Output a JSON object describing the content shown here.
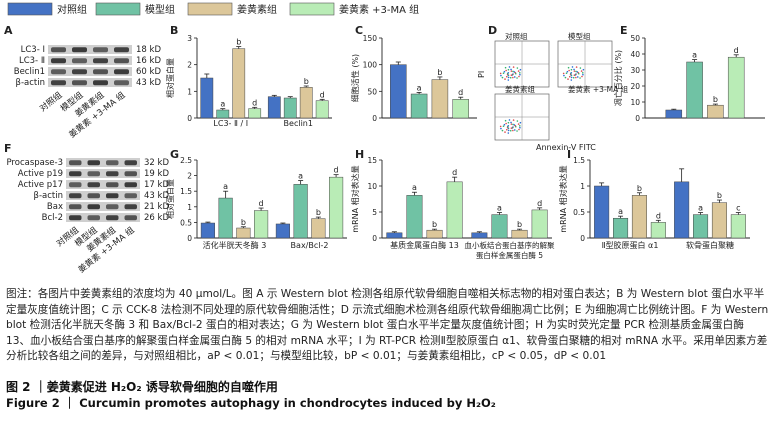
{
  "legend": [
    {
      "label": "对照组",
      "color": "#4472c4"
    },
    {
      "label": "模型组",
      "color": "#70c2a4"
    },
    {
      "label": "姜黄素组",
      "color": "#dcc79a"
    },
    {
      "label": "姜黄素 +3-MA 组",
      "color": "#b9ecb6"
    }
  ],
  "panels": {
    "A": {
      "letter": "A",
      "proteins": [
        "LC3- Ⅰ",
        "LC3- Ⅱ",
        "Beclin1",
        "β-actin"
      ],
      "kda": [
        "18 kD",
        "16 kD",
        "60 kD",
        "43 kD"
      ],
      "groups": [
        "对照组",
        "模型组",
        "姜黄素组",
        "姜黄素 +3-MA 组"
      ]
    },
    "D": {
      "letter": "D",
      "labels": [
        "对照组",
        "模型组",
        "姜黄素组",
        "姜黄素 +3-MA 组"
      ],
      "xlabel": "Annexin-V FITC",
      "ylabel": "PI"
    },
    "F": {
      "letter": "F",
      "proteins": [
        "Procaspase-3",
        "Active p19",
        "Active p17",
        "β-actin",
        "Bax",
        "Bcl-2"
      ],
      "kda": [
        "32 kD",
        "19 kD",
        "17 kD",
        "43 kD",
        "21 kD",
        "26 kD"
      ],
      "groups": [
        "对照组",
        "模型组",
        "姜黄素组",
        "姜黄素 +3-MA 组"
      ]
    }
  },
  "chart_data": [
    {
      "type": "bar",
      "panel": "B",
      "ylabel": "相对蛋白量",
      "yticks": [
        0,
        1,
        2,
        3
      ],
      "ylim": [
        0,
        3
      ],
      "categories": [
        "LC3- Ⅱ / Ⅰ",
        "Beclin1"
      ],
      "series": [
        {
          "name": "对照组",
          "values": [
            1.5,
            0.8
          ],
          "err": [
            0.15,
            0.05
          ]
        },
        {
          "name": "模型组",
          "values": [
            0.3,
            0.75
          ],
          "err": [
            0.05,
            0.05
          ]
        },
        {
          "name": "姜黄素组",
          "values": [
            2.6,
            1.15
          ],
          "err": [
            0.08,
            0.05
          ]
        },
        {
          "name": "姜黄素 +3-MA 组",
          "values": [
            0.35,
            0.65
          ],
          "err": [
            0.05,
            0.05
          ]
        }
      ],
      "sig": [
        [
          "",
          "a",
          "b",
          "d"
        ],
        [
          "",
          "",
          "b",
          "d"
        ]
      ]
    },
    {
      "type": "bar",
      "panel": "C",
      "ylabel": "细胞活性 (%)",
      "yticks": [
        0,
        50,
        100,
        150
      ],
      "ylim": [
        0,
        150
      ],
      "categories": [
        ""
      ],
      "series": [
        {
          "name": "对照组",
          "values": [
            100
          ],
          "err": [
            5
          ]
        },
        {
          "name": "模型组",
          "values": [
            45
          ],
          "err": [
            3
          ]
        },
        {
          "name": "姜黄素组",
          "values": [
            72
          ],
          "err": [
            5
          ]
        },
        {
          "name": "姜黄素 +3-MA 组",
          "values": [
            35
          ],
          "err": [
            4
          ]
        }
      ],
      "sig": [
        [
          "",
          "a",
          "b",
          "d"
        ]
      ]
    },
    {
      "type": "bar",
      "panel": "E",
      "ylabel": "凋亡百分比 (%)",
      "yticks": [
        0,
        10,
        20,
        30,
        40,
        50
      ],
      "ylim": [
        0,
        50
      ],
      "categories": [
        ""
      ],
      "series": [
        {
          "name": "对照组",
          "values": [
            5
          ],
          "err": [
            0.5
          ]
        },
        {
          "name": "模型组",
          "values": [
            35
          ],
          "err": [
            1.5
          ]
        },
        {
          "name": "姜黄素组",
          "values": [
            8
          ],
          "err": [
            0.7
          ]
        },
        {
          "name": "姜黄素 +3-MA 组",
          "values": [
            38
          ],
          "err": [
            1.5
          ]
        }
      ],
      "sig": [
        [
          "",
          "a",
          "b",
          "d"
        ]
      ]
    },
    {
      "type": "bar",
      "panel": "G",
      "ylabel": "相对蛋白量",
      "yticks": [
        0,
        0.5,
        1.0,
        1.5,
        2.0,
        2.5
      ],
      "ylim": [
        0,
        2.5
      ],
      "categories": [
        "活化半胱天冬酶 3",
        "Bax/Bcl-2"
      ],
      "series": [
        {
          "name": "对照组",
          "values": [
            0.48,
            0.45
          ],
          "err": [
            0.03,
            0.03
          ]
        },
        {
          "name": "模型组",
          "values": [
            1.28,
            1.72
          ],
          "err": [
            0.22,
            0.12
          ]
        },
        {
          "name": "姜黄素组",
          "values": [
            0.32,
            0.62
          ],
          "err": [
            0.04,
            0.05
          ]
        },
        {
          "name": "姜黄素 +3-MA 组",
          "values": [
            0.88,
            1.95
          ],
          "err": [
            0.08,
            0.08
          ]
        }
      ],
      "sig": [
        [
          "",
          "a",
          "b",
          "d"
        ],
        [
          "",
          "a",
          "b",
          "d"
        ]
      ]
    },
    {
      "type": "bar",
      "panel": "H",
      "ylabel": "mRNA 相对表达量",
      "yticks": [
        0,
        5,
        10,
        15
      ],
      "ylim": [
        0,
        15
      ],
      "categories": [
        "基质金属蛋白酶 13",
        "血小板结合蛋白基序的解聚蛋白样金属蛋白酶 5"
      ],
      "series": [
        {
          "name": "对照组",
          "values": [
            1.0,
            1.0
          ],
          "err": [
            0.2,
            0.2
          ]
        },
        {
          "name": "模型组",
          "values": [
            8.2,
            4.5
          ],
          "err": [
            0.6,
            0.4
          ]
        },
        {
          "name": "姜黄素组",
          "values": [
            1.5,
            1.5
          ],
          "err": [
            0.2,
            0.2
          ]
        },
        {
          "name": "姜黄素 +3-MA 组",
          "values": [
            10.8,
            5.4
          ],
          "err": [
            0.9,
            0.4
          ]
        }
      ],
      "sig": [
        [
          "",
          "a",
          "b",
          "d"
        ],
        [
          "",
          "a",
          "b",
          "d"
        ]
      ]
    },
    {
      "type": "bar",
      "panel": "I",
      "ylabel": "mRNA 相对表达量",
      "yticks": [
        0,
        0.5,
        1.0,
        1.5
      ],
      "ylim": [
        0,
        1.5
      ],
      "categories": [
        "Ⅱ型胶原蛋白 α1",
        "软骨蛋白聚糖"
      ],
      "series": [
        {
          "name": "对照组",
          "values": [
            1.0,
            1.08
          ],
          "err": [
            0.06,
            0.25
          ]
        },
        {
          "name": "模型组",
          "values": [
            0.38,
            0.45
          ],
          "err": [
            0.04,
            0.04
          ]
        },
        {
          "name": "姜黄素组",
          "values": [
            0.82,
            0.68
          ],
          "err": [
            0.05,
            0.05
          ]
        },
        {
          "name": "姜黄素 +3-MA 组",
          "values": [
            0.3,
            0.45
          ],
          "err": [
            0.04,
            0.04
          ]
        }
      ],
      "sig": [
        [
          "",
          "a",
          "b",
          "d"
        ],
        [
          "",
          "a",
          "b",
          "c"
        ]
      ]
    }
  ],
  "caption": "图注：各图片中姜黄素组的浓度均为 40 μmol/L。图 A 示 Western blot 检测各组原代软骨细胞自噬相关标志物的相对蛋白表达；B 为 Western blot 蛋白水平半定量灰度值统计图；C 示 CCK-8 法检测不同处理的原代软骨细胞活性；D 示流式细胞术检测各组原代软骨细胞凋亡比例；E 为细胞凋亡比例统计图。F 为 Western blot 检测活化半胱天冬酶 3 和 Bax/Bcl-2 蛋白的相对表达；G 为 Western blot 蛋白水平半定量灰度值统计图；H 为实时荧光定量 PCR 检测基质金属蛋白酶 13、血小板结合蛋白基序的解聚蛋白样金属蛋白酶 5 的相对 mRNA 水平；I 为 RT-PCR 检测Ⅱ型胶原蛋白 α1、软骨蛋白聚糖的相对 mRNA 水平。采用单因素方差分析比较各组之间的差异，与对照组相比，aP < 0.01；与模型组比较，bP < 0.01；与姜黄素组相比，cP < 0.05，dP < 0.01",
  "figure_title_cn": "图 2 ｜姜黄素促进 H₂O₂ 诱导软骨细胞的自噬作用",
  "figure_title_en": "Figure 2 ｜ Curcumin promotes autophagy in chondrocytes induced by H₂O₂"
}
